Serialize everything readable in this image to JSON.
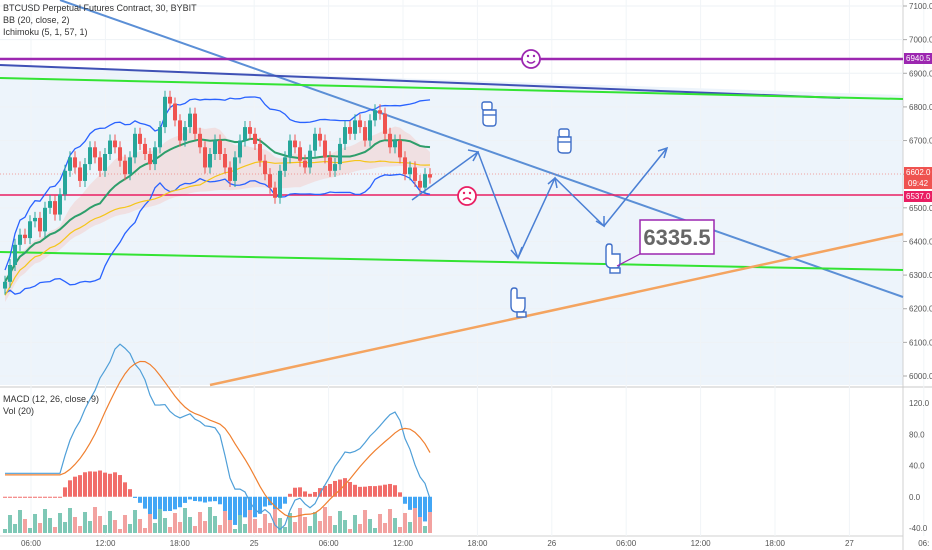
{
  "header": {
    "symbol_line": "BTCUSD Perpetual Futures Contract, 30, BYBIT",
    "indicator_bb": "BB (20, close, 2)",
    "indicator_ichimoku": "Ichimoku (5, 1, 57, 1)"
  },
  "macd_panel": {
    "label_macd": "MACD (12, 26, close, 9)",
    "label_vol": "Vol (20)"
  },
  "price_tags": {
    "tag_6940": "6940.5",
    "tag_6602": "6602.0",
    "tag_time": "09:42",
    "tag_6537": "6537.0"
  },
  "callout": {
    "text": "6335.5"
  },
  "colors": {
    "magenta_line": "#9c27b0",
    "green_line": "#33e333",
    "navy_line": "#3f51b5",
    "lightblue_line": "#5b8fd6",
    "orange_line": "#f4a460",
    "red_line": "#e91e63",
    "candle_up": "#26a69a",
    "candle_down": "#ef5350",
    "arrow_blue": "#4a7fd4",
    "macd_line": "#4f9fd8",
    "signal_line": "#f08030"
  },
  "chart_data": {
    "type": "candlestick",
    "title": "BTCUSD Perpetual Futures Contract, 30, BYBIT",
    "ylim": [
      5950,
      7110
    ],
    "y_ticks": [
      "7100.0",
      "7000.0",
      "6900.0",
      "6800.0",
      "6700.0",
      "6600.0",
      "6500.0",
      "6400.0",
      "6300.0",
      "6200.0",
      "6100.0",
      "6000.0"
    ],
    "x_ticks": [
      "06:00",
      "12:00",
      "18:00",
      "25",
      "06:00",
      "12:00",
      "18:00",
      "26",
      "06:00",
      "12:00",
      "18:00",
      "27",
      "06:"
    ],
    "horizontal_levels": [
      6940.5,
      6537.0
    ],
    "last_price": 6602.0,
    "target_price": 6335.5,
    "candles_close": [
      6280,
      6330,
      6390,
      6420,
      6410,
      6460,
      6470,
      6430,
      6500,
      6520,
      6480,
      6540,
      6610,
      6650,
      6620,
      6580,
      6630,
      6680,
      6650,
      6610,
      6660,
      6700,
      6680,
      6640,
      6600,
      6650,
      6720,
      6690,
      6660,
      6630,
      6680,
      6740,
      6830,
      6810,
      6760,
      6700,
      6740,
      6780,
      6720,
      6680,
      6620,
      6660,
      6700,
      6660,
      6620,
      6580,
      6650,
      6700,
      6740,
      6720,
      6690,
      6640,
      6600,
      6560,
      6530,
      6610,
      6650,
      6700,
      6680,
      6640,
      6620,
      6670,
      6720,
      6700,
      6650,
      6610,
      6630,
      6690,
      6740,
      6720,
      6760,
      6740,
      6700,
      6760,
      6790,
      6780,
      6720,
      6680,
      6700,
      6650,
      6600,
      6620,
      6580,
      6560,
      6600,
      6590
    ],
    "macd_panel": {
      "y_ticks": [
        "120.0",
        "80.0",
        "40.0",
        "0.0",
        "-40.0"
      ]
    }
  }
}
